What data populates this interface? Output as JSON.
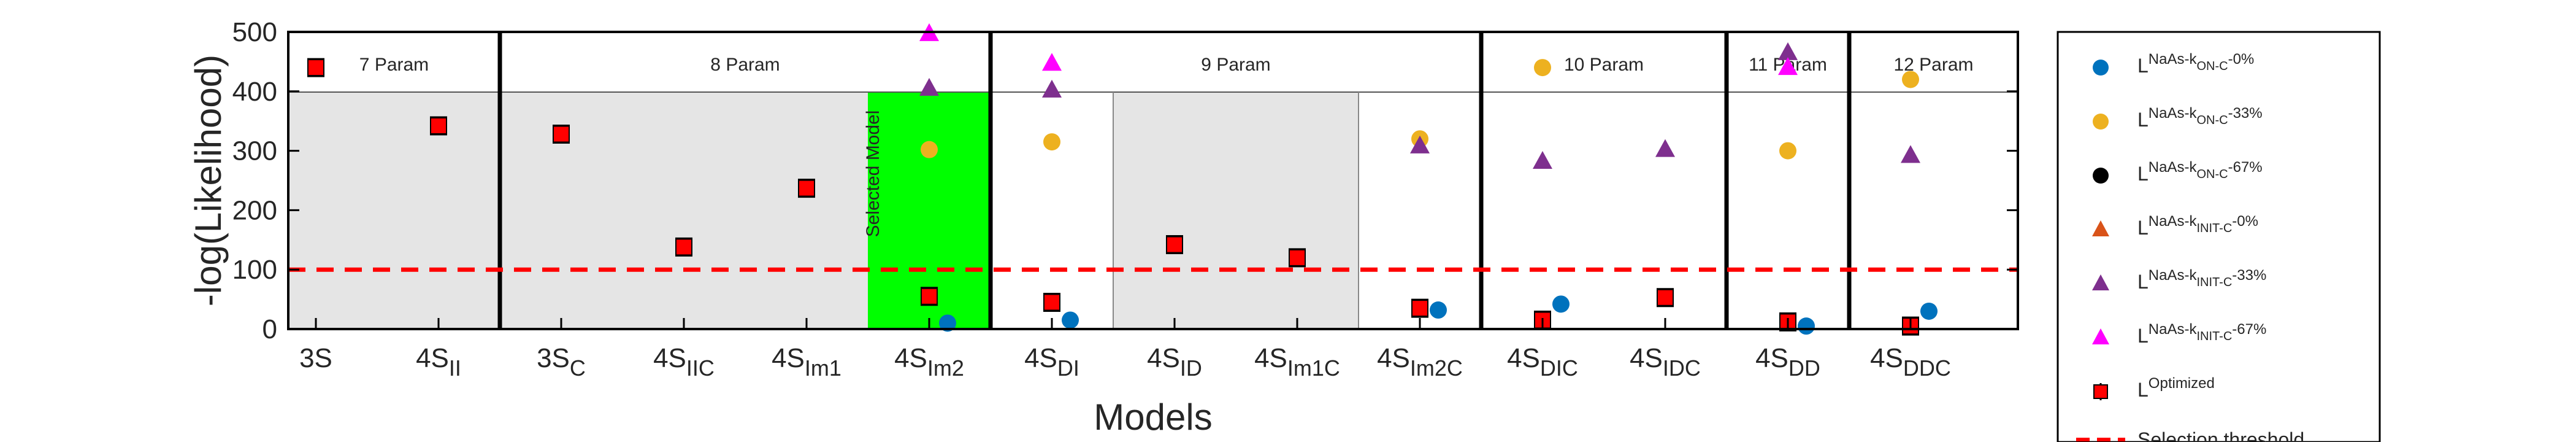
{
  "chart_data": {
    "type": "scatter",
    "xlabel": "Models",
    "ylabel": "-log(Likelihood)",
    "ylim": [
      0,
      500
    ],
    "yticks": [
      0,
      100,
      200,
      300,
      400,
      500
    ],
    "categories": [
      {
        "base": "3S",
        "sub": ""
      },
      {
        "base": "4S",
        "sub": "II"
      },
      {
        "base": "3S",
        "sub": "C"
      },
      {
        "base": "4S",
        "sub": "IIC"
      },
      {
        "base": "4S",
        "sub": "Im1"
      },
      {
        "base": "4S",
        "sub": "Im2"
      },
      {
        "base": "4S",
        "sub": "DI"
      },
      {
        "base": "4S",
        "sub": "ID"
      },
      {
        "base": "4S",
        "sub": "Im1C"
      },
      {
        "base": "4S",
        "sub": "Im2C"
      },
      {
        "base": "4S",
        "sub": "DIC"
      },
      {
        "base": "4S",
        "sub": "IDC"
      },
      {
        "base": "4S",
        "sub": "DD"
      },
      {
        "base": "4S",
        "sub": "DDC"
      }
    ],
    "param_groups": [
      {
        "label": "7 Param",
        "from": 0,
        "to": 1
      },
      {
        "label": "8 Param",
        "from": 2,
        "to": 5
      },
      {
        "label": "9 Param",
        "from": 6,
        "to": 9
      },
      {
        "label": "10 Param",
        "from": 10,
        "to": 11
      },
      {
        "label": "11 Param",
        "from": 12,
        "to": 12
      },
      {
        "label": "12 Param",
        "from": 13,
        "to": 13
      }
    ],
    "selected_model": {
      "index": 5,
      "label": "Selected Model",
      "color": "#00ff00"
    },
    "grey_regions": [
      [
        0,
        1
      ],
      [
        2,
        4
      ],
      [
        7,
        8
      ]
    ],
    "threshold": {
      "value": 100,
      "label": "Selection threshold",
      "color": "#ff0000"
    },
    "series": [
      {
        "name": "L_NaAs-k_ON-C-0%",
        "main": "L",
        "sub": "NaAs-k",
        "subsub": "ON-C",
        "suffix": "-0%",
        "marker": "circle",
        "color": "#0072bd",
        "points": [
          [
            5,
            10
          ],
          [
            6,
            15
          ],
          [
            9,
            32
          ],
          [
            10,
            42
          ],
          [
            12,
            5
          ],
          [
            13,
            30
          ]
        ]
      },
      {
        "name": "L_NaAs-k_ON-C-33%",
        "main": "L",
        "sub": "NaAs-k",
        "subsub": "ON-C",
        "suffix": "-33%",
        "marker": "circle",
        "color": "#edb120",
        "points": [
          [
            5,
            302
          ],
          [
            6,
            315
          ],
          [
            9,
            320
          ],
          [
            10,
            440
          ],
          [
            12,
            300
          ],
          [
            13,
            420
          ]
        ]
      },
      {
        "name": "L_NaAs-k_ON-C-67%",
        "main": "L",
        "sub": "NaAs-k",
        "subsub": "ON-C",
        "suffix": "-67%",
        "marker": "circle",
        "color": "#000000",
        "points": []
      },
      {
        "name": "L_NaAs-k_INIT-C-0%",
        "main": "L",
        "sub": "NaAs-k",
        "subsub": "INIT-C",
        "suffix": "-0%",
        "marker": "triangle",
        "color": "#d95319",
        "points": []
      },
      {
        "name": "L_NaAs-k_INIT-C-33%",
        "main": "L",
        "sub": "NaAs-k",
        "subsub": "INIT-C",
        "suffix": "-33%",
        "marker": "triangle",
        "color": "#7e2f8e",
        "points": [
          [
            5,
            405
          ],
          [
            6,
            402
          ],
          [
            9,
            308
          ],
          [
            10,
            282
          ],
          [
            11,
            302
          ],
          [
            12,
            465
          ],
          [
            13,
            292
          ]
        ]
      },
      {
        "name": "L_NaAs-k_INIT-C-67%",
        "main": "L",
        "sub": "NaAs-k",
        "subsub": "INIT-C",
        "suffix": "-67%",
        "marker": "triangle",
        "color": "#ff00ff",
        "points": [
          [
            5,
            497
          ],
          [
            6,
            447
          ],
          [
            12,
            440
          ]
        ]
      },
      {
        "name": "L_Optimized",
        "main": "L",
        "sub": "Optimized",
        "subsub": "",
        "suffix": "",
        "marker": "square",
        "color": "#ff0000",
        "points": [
          [
            0,
            440
          ],
          [
            1,
            342
          ],
          [
            2,
            328
          ],
          [
            3,
            138
          ],
          [
            4,
            237
          ],
          [
            5,
            55
          ],
          [
            6,
            45
          ],
          [
            7,
            142
          ],
          [
            8,
            120
          ],
          [
            9,
            35
          ],
          [
            10,
            15
          ],
          [
            11,
            53
          ],
          [
            12,
            12
          ],
          [
            13,
            5
          ]
        ]
      }
    ],
    "legend_position": "right-outside"
  }
}
